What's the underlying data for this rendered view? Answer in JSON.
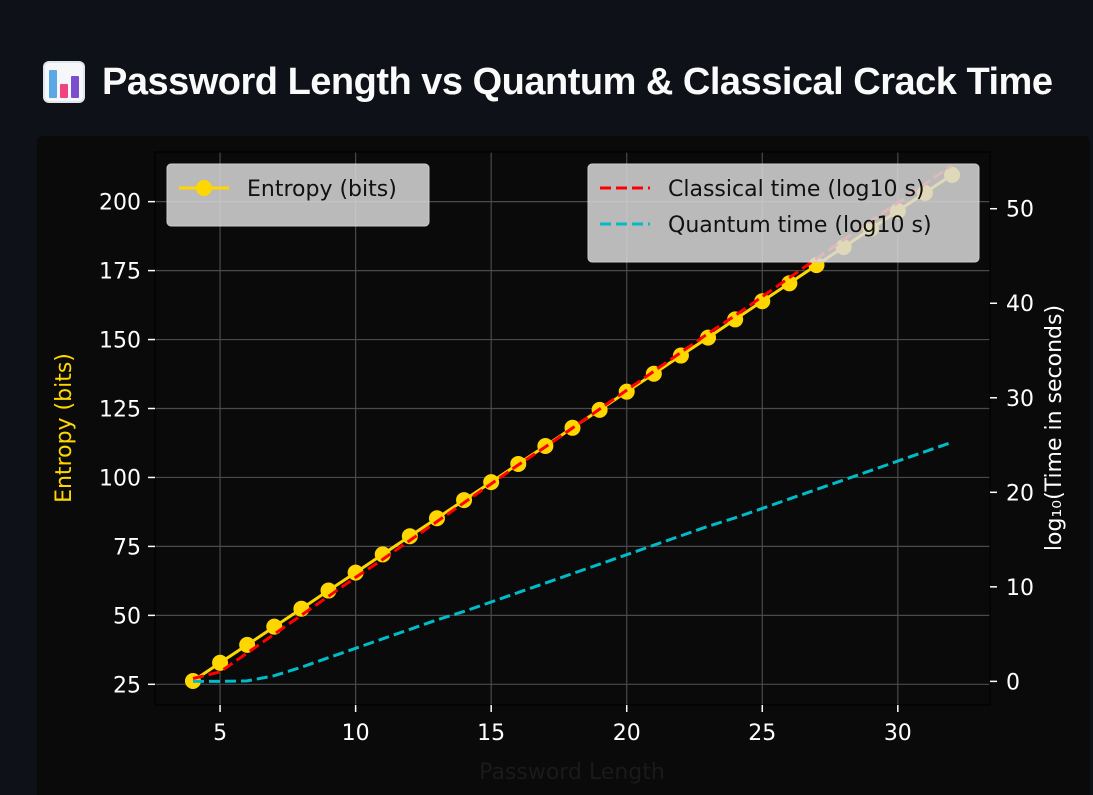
{
  "page": {
    "title": "Password Length vs Quantum & Classical Crack Time",
    "icon": "bar-chart-icon"
  },
  "chart_data": {
    "type": "line",
    "title": "",
    "xlabel": "Password Length",
    "ylabel": "Entropy (bits)",
    "y2label": "log₁₀(Time in seconds)",
    "xlim": [
      2.6,
      33.4
    ],
    "ylim": [
      17.5,
      218
    ],
    "y2lim": [
      -2.5,
      56
    ],
    "x_ticks": [
      5,
      10,
      15,
      20,
      25,
      30
    ],
    "y_ticks": [
      25,
      50,
      75,
      100,
      125,
      150,
      175,
      200
    ],
    "y2_ticks": [
      0,
      10,
      20,
      30,
      40,
      50
    ],
    "x": [
      4,
      5,
      6,
      7,
      8,
      9,
      10,
      11,
      12,
      13,
      14,
      15,
      16,
      17,
      18,
      19,
      20,
      21,
      22,
      23,
      24,
      25,
      26,
      27,
      28,
      29,
      30,
      31,
      32
    ],
    "grid": true,
    "series": [
      {
        "name": "Entropy (bits)",
        "axis": "left",
        "style": "line-marker",
        "color": "#ffd700",
        "values": [
          26.2,
          32.8,
          39.3,
          45.9,
          52.4,
          59.0,
          65.5,
          72.1,
          78.7,
          85.2,
          91.8,
          98.3,
          104.9,
          111.4,
          118.0,
          124.5,
          131.1,
          137.6,
          144.2,
          150.7,
          157.3,
          163.9,
          170.4,
          177.0,
          183.5,
          190.1,
          196.6,
          203.2,
          209.7
        ]
      },
      {
        "name": "Classical time (log10 s)",
        "axis": "right",
        "style": "dashed",
        "color": "#ff0000",
        "values": [
          0.3,
          1.0,
          3.0,
          5.0,
          7.0,
          9.0,
          11.0,
          12.9,
          14.9,
          16.9,
          18.9,
          20.9,
          22.9,
          24.8,
          26.8,
          28.8,
          30.8,
          32.8,
          34.8,
          36.8,
          38.7,
          40.7,
          42.7,
          44.7,
          46.7,
          48.7,
          50.6,
          52.6,
          54.6
        ]
      },
      {
        "name": "Quantum time (log10 s)",
        "axis": "right",
        "style": "dashed",
        "color": "#00bcc8",
        "values": [
          0.0,
          0.0,
          0.05,
          0.6,
          1.5,
          2.5,
          3.5,
          4.5,
          5.5,
          6.5,
          7.4,
          8.4,
          9.4,
          10.4,
          11.4,
          12.4,
          13.4,
          14.4,
          15.4,
          16.4,
          17.3,
          18.3,
          19.3,
          20.3,
          21.3,
          22.3,
          23.3,
          24.3,
          25.3
        ]
      }
    ],
    "legends": [
      {
        "position": "upper left",
        "entries": [
          "Entropy (bits)"
        ]
      },
      {
        "position": "upper right",
        "entries": [
          "Classical time (log10 s)",
          "Quantum time (log10 s)"
        ]
      }
    ],
    "colors": {
      "background": "#0e1117",
      "figure": "#0a0a0a",
      "axis_text": "#ffffff",
      "left_label": "#ffd700",
      "xlabel": "#1a1a1a"
    }
  }
}
